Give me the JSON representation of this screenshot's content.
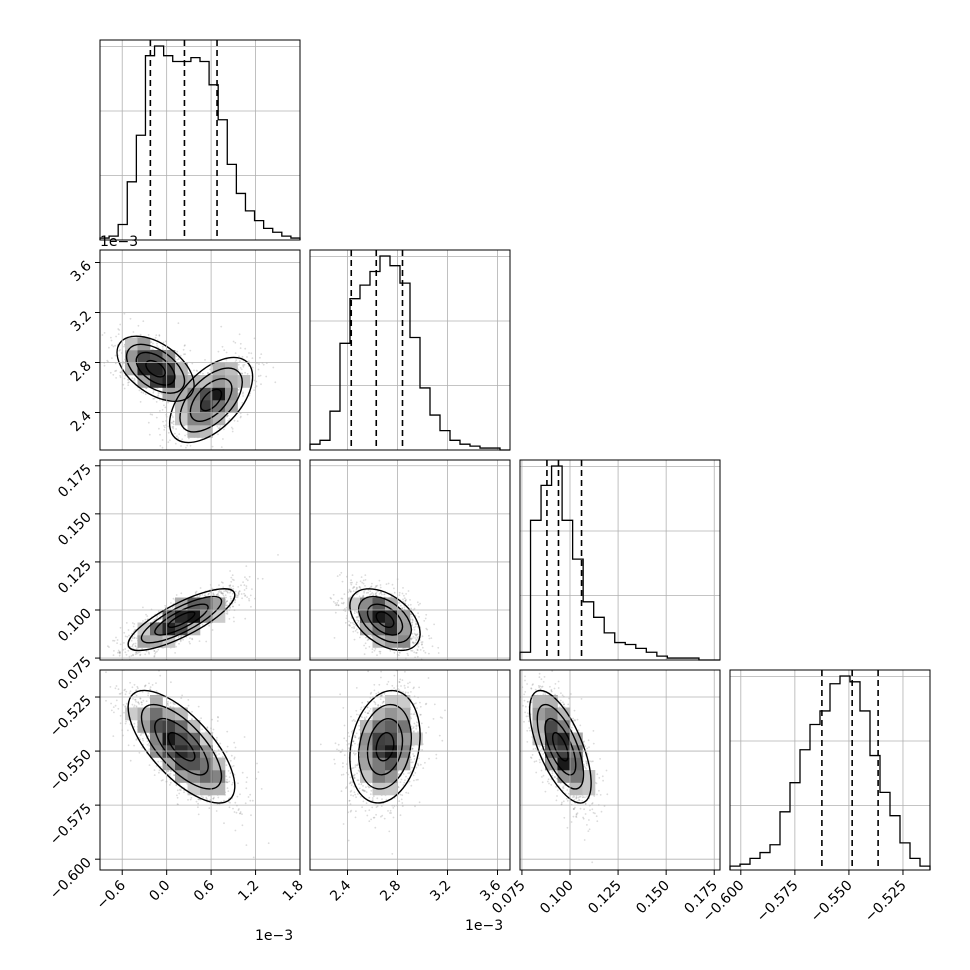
{
  "chart_data": {
    "type": "corner",
    "grid": true,
    "colors": {
      "points": "#7f7f7f",
      "grid": "#b0b0b0",
      "contour": "#000000",
      "hist": "#000000",
      "background": "#ffffff"
    },
    "params": [
      {
        "range": [
          -0.0009,
          0.0018
        ],
        "ticks": [
          -0.0006,
          0.0,
          0.0006,
          0.0012,
          0.0018
        ],
        "tick_labels": [
          "−0.6",
          "0.0",
          "0.6",
          "1.2",
          "1.8"
        ],
        "offset_text": "1e−3",
        "offset_text_top": "1e−3",
        "quantiles": [
          -0.00022,
          0.00024,
          0.00068
        ]
      },
      {
        "range": [
          0.0021,
          0.0037
        ],
        "ticks": [
          0.0024,
          0.0028,
          0.0032,
          0.0036
        ],
        "tick_labels": [
          "2.4",
          "2.8",
          "3.2",
          "3.6"
        ],
        "offset_text": "1e−3",
        "quantiles": [
          0.00243,
          0.00263,
          0.00284
        ]
      },
      {
        "range": [
          0.074,
          0.178
        ],
        "ticks": [
          0.075,
          0.1,
          0.125,
          0.15,
          0.175
        ],
        "tick_labels": [
          "0.075",
          "0.100",
          "0.125",
          "0.150",
          "0.175"
        ],
        "quantiles": [
          0.088,
          0.094,
          0.106
        ]
      },
      {
        "range": [
          -0.605,
          -0.5125
        ],
        "ticks": [
          -0.6,
          -0.575,
          -0.55,
          -0.525
        ],
        "tick_labels": [
          "−0.600",
          "−0.575",
          "−0.550",
          "−0.525"
        ],
        "quantiles": [
          -0.5625,
          -0.5485,
          -0.5365
        ]
      }
    ],
    "hist1d": [
      {
        "edges_range": [
          -0.0009,
          0.0018
        ],
        "counts": [
          1,
          2,
          8,
          30,
          54,
          95,
          100,
          95,
          92,
          92,
          94,
          92,
          80,
          62,
          39,
          24,
          15,
          10,
          6,
          4,
          2,
          1
        ]
      },
      {
        "edges_range": [
          0.0021,
          0.0037
        ],
        "counts": [
          3,
          5,
          20,
          55,
          78,
          85,
          92,
          100,
          95,
          86,
          58,
          32,
          18,
          10,
          5,
          3,
          2,
          1,
          1,
          0
        ]
      },
      {
        "edges_range": [
          0.074,
          0.178
        ],
        "counts": [
          4,
          72,
          90,
          100,
          72,
          52,
          30,
          22,
          14,
          9,
          8,
          6,
          4,
          2,
          1,
          1,
          1,
          0,
          0
        ]
      },
      {
        "edges_range": [
          -0.605,
          -0.5125
        ],
        "counts": [
          2,
          3,
          6,
          9,
          13,
          30,
          45,
          62,
          75,
          82,
          96,
          100,
          97,
          82,
          59,
          40,
          28,
          14,
          6,
          2
        ]
      }
    ],
    "pairs": [
      {
        "xi": 0,
        "yi": 1,
        "components": [
          {
            "w": 0.5,
            "mx": -0.00015,
            "my": 0.00275,
            "sx": 0.00026,
            "sy": 0.00013,
            "r": -0.5
          },
          {
            "w": 0.5,
            "mx": 0.0006,
            "my": 0.0025,
            "sx": 0.00028,
            "sy": 0.00017,
            "r": 0.55
          }
        ]
      },
      {
        "xi": 0,
        "yi": 2,
        "components": [
          {
            "w": 1.0,
            "mx": 0.0002,
            "my": 0.095,
            "sx": 0.00036,
            "sy": 0.008,
            "r": 0.8
          }
        ]
      },
      {
        "xi": 1,
        "yi": 2,
        "components": [
          {
            "w": 1.0,
            "mx": 0.0027,
            "my": 0.095,
            "sx": 0.00014,
            "sy": 0.008,
            "r": -0.45
          }
        ]
      },
      {
        "xi": 0,
        "yi": 3,
        "components": [
          {
            "w": 1.0,
            "mx": 0.0002,
            "my": -0.548,
            "sx": 0.00036,
            "sy": 0.013,
            "r": -0.7
          }
        ]
      },
      {
        "xi": 1,
        "yi": 3,
        "components": [
          {
            "w": 1.0,
            "mx": 0.0027,
            "my": -0.548,
            "sx": 0.00014,
            "sy": 0.013,
            "r": 0.2
          }
        ]
      },
      {
        "xi": 2,
        "yi": 3,
        "components": [
          {
            "w": 1.0,
            "mx": 0.095,
            "my": -0.548,
            "sx": 0.008,
            "sy": 0.013,
            "r": -0.65
          }
        ]
      }
    ]
  }
}
